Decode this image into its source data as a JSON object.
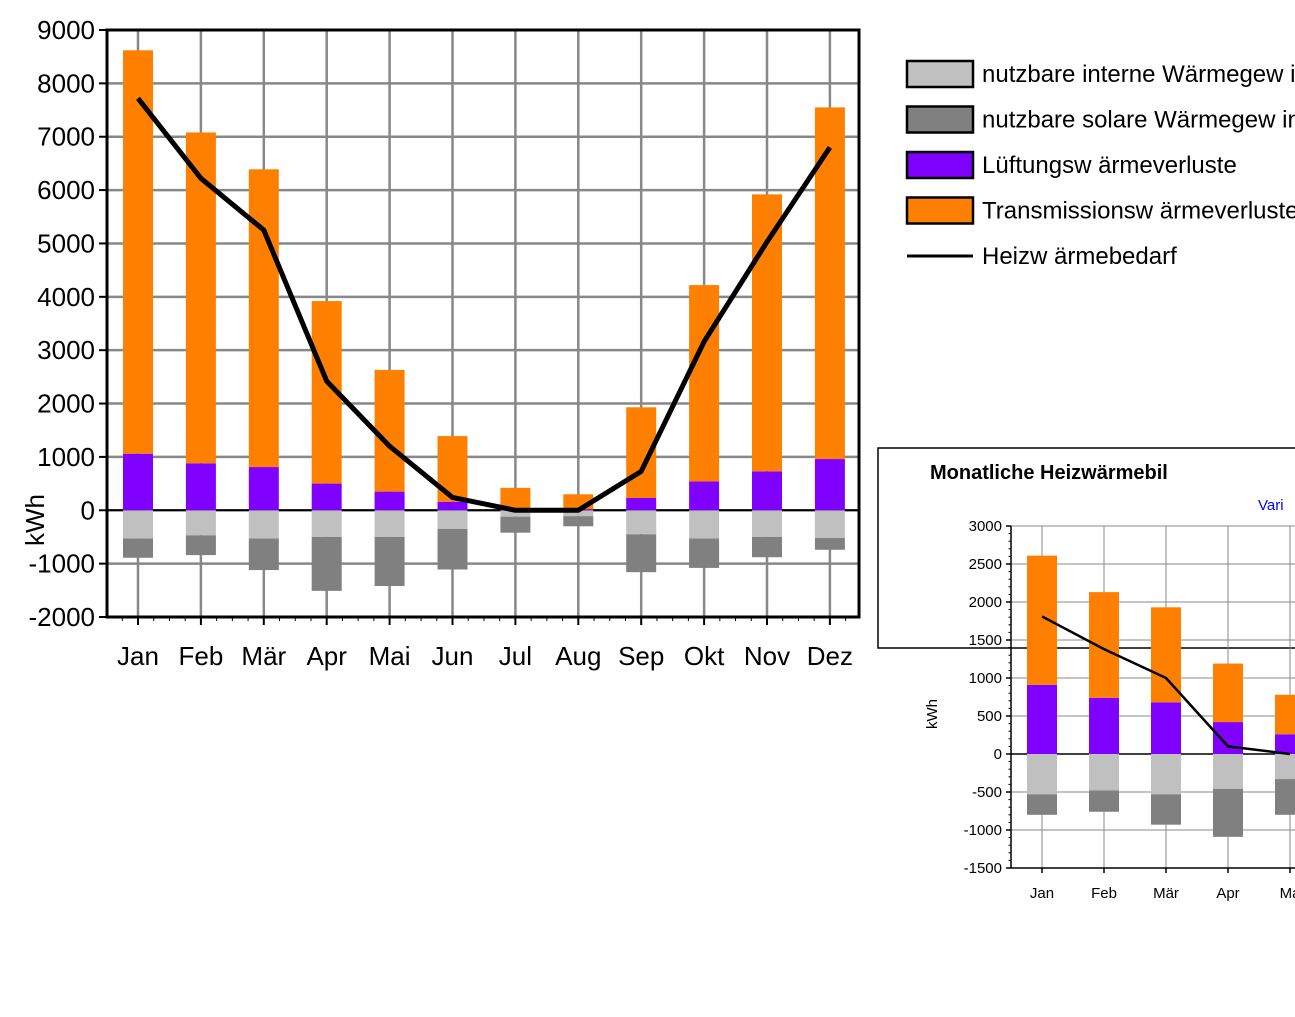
{
  "chart_data": [
    {
      "type": "bar",
      "stacked": true,
      "categories": [
        "Jan",
        "Feb",
        "Mär",
        "Apr",
        "Mai",
        "Jun",
        "Jul",
        "Aug",
        "Sep",
        "Okt",
        "Nov",
        "Dez"
      ],
      "ylabel": "kWh",
      "ylim": [
        -2000,
        9000
      ],
      "yticks": [
        9000,
        8000,
        7000,
        6000,
        5000,
        4000,
        3000,
        2000,
        1000,
        0,
        -1000,
        -2000
      ],
      "grid": true,
      "legend_position": "right",
      "series": [
        {
          "name": "nutzbare interne Wärmegew inne",
          "color": "#c0c0c0",
          "values": [
            -530,
            -470,
            -530,
            -500,
            -500,
            -350,
            -120,
            -110,
            -450,
            -530,
            -500,
            -520
          ]
        },
        {
          "name": "nutzbare solare Wärmegew inne",
          "color": "#808080",
          "values": [
            -360,
            -370,
            -590,
            -1010,
            -920,
            -760,
            -300,
            -190,
            -710,
            -550,
            -380,
            -220
          ]
        },
        {
          "name": "Lüftungsw ärmeverluste",
          "color": "#8000ff",
          "values": [
            1060,
            880,
            810,
            500,
            350,
            160,
            30,
            20,
            230,
            540,
            730,
            960
          ]
        },
        {
          "name": "Transmissionsw ärmeverluste",
          "color": "#ff8000",
          "values": [
            7560,
            6200,
            5580,
            3420,
            2280,
            1230,
            390,
            280,
            1700,
            3680,
            5190,
            6590
          ]
        },
        {
          "name": "Heizw ärmebedarf",
          "type": "line",
          "color": "#000000",
          "values": [
            7720,
            6220,
            5250,
            2420,
            1200,
            240,
            0,
            0,
            730,
            3160,
            5030,
            6800
          ]
        }
      ]
    },
    {
      "type": "bar",
      "stacked": true,
      "title": "Monatliche Heizwärmebil",
      "subtitle": "Vari",
      "ylabel": "kWh",
      "categories": [
        "Jan",
        "Feb",
        "Mär",
        "Apr",
        "Ma"
      ],
      "ylim": [
        -1500,
        3000
      ],
      "yticks": [
        3000,
        2500,
        2000,
        1500,
        1000,
        500,
        0,
        -500,
        -1000,
        -1500
      ],
      "grid": true,
      "series": [
        {
          "name": "interne",
          "color": "#c0c0c0",
          "values": [
            -530,
            -480,
            -530,
            -460,
            -330
          ]
        },
        {
          "name": "solare",
          "color": "#808080",
          "values": [
            -270,
            -280,
            -400,
            -630,
            -470
          ]
        },
        {
          "name": "Lüftung",
          "color": "#8000ff",
          "values": [
            910,
            740,
            680,
            420,
            260
          ]
        },
        {
          "name": "Transmission",
          "color": "#ff8000",
          "values": [
            1700,
            1390,
            1250,
            770,
            520
          ]
        },
        {
          "name": "Heizwärmebedarf",
          "type": "line",
          "color": "#000000",
          "values": [
            1810,
            1380,
            1000,
            100,
            0
          ]
        }
      ]
    }
  ]
}
